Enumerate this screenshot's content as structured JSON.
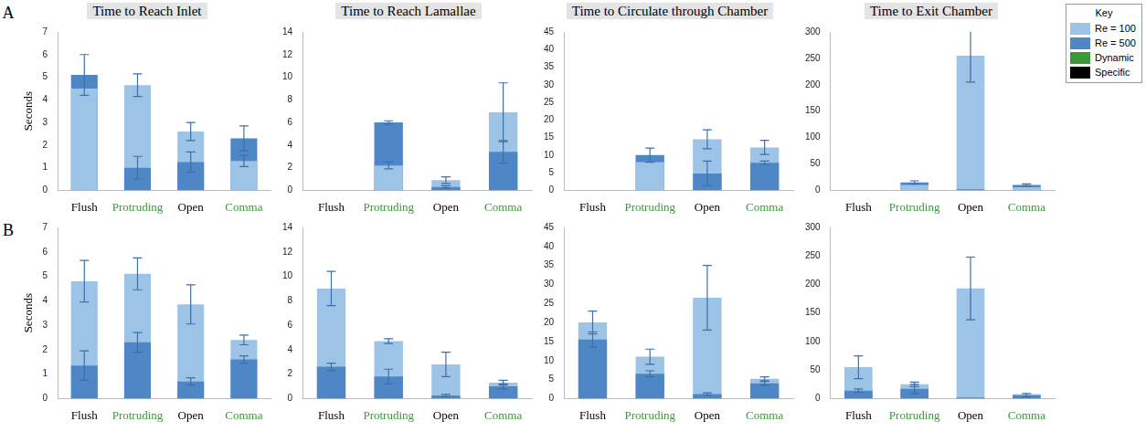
{
  "chart_data": [
    {
      "type": "bar",
      "panel": "A",
      "title": "Time to Reach Inlet",
      "y_label": "Seconds",
      "categories": [
        "Flush",
        "Protruding",
        "Open",
        "Comma"
      ],
      "category_groups": [
        "Specific",
        "Dynamic",
        "Specific",
        "Dynamic"
      ],
      "series": [
        {
          "name": "Re = 100",
          "color": "#9dc3e6",
          "values": [
            4.5,
            4.65,
            2.6,
            1.3
          ],
          "errors": [
            null,
            0.5,
            0.4,
            0.25
          ]
        },
        {
          "name": "Re = 500",
          "color": "#4f86c6",
          "values": [
            5.1,
            1.0,
            1.25,
            2.3
          ],
          "errors": [
            0.9,
            0.5,
            0.45,
            0.55
          ]
        }
      ],
      "ylim": [
        0,
        7
      ],
      "yticks": [
        0,
        1,
        2,
        3,
        4,
        5,
        6,
        7
      ],
      "grid": false
    },
    {
      "type": "bar",
      "title": "Time to Reach Lamallae",
      "categories": [
        "Flush",
        "Protruding",
        "Open",
        "Comma"
      ],
      "category_groups": [
        "Specific",
        "Dynamic",
        "Specific",
        "Dynamic"
      ],
      "series": [
        {
          "name": "Re = 100",
          "color": "#9dc3e6",
          "values": [
            null,
            2.2,
            0.9,
            6.9
          ],
          "errors": [
            null,
            0.3,
            0.3,
            2.6
          ]
        },
        {
          "name": "Re = 500",
          "color": "#4f86c6",
          "values": [
            null,
            6.0,
            0.3,
            3.4
          ],
          "errors": [
            null,
            0.15,
            0.1,
            1.0
          ]
        }
      ],
      "ylim": [
        0,
        14
      ],
      "yticks": [
        0,
        2,
        4,
        6,
        8,
        10,
        12,
        14
      ],
      "grid": false
    },
    {
      "type": "bar",
      "title": "Time to Circulate through Chamber",
      "categories": [
        "Flush",
        "Protruding",
        "Open",
        "Comma"
      ],
      "category_groups": [
        "Specific",
        "Dynamic",
        "Specific",
        "Dynamic"
      ],
      "series": [
        {
          "name": "Re = 100",
          "color": "#9dc3e6",
          "values": [
            null,
            8.0,
            14.5,
            12.2
          ],
          "errors": [
            null,
            null,
            2.7,
            2.0
          ]
        },
        {
          "name": "Re = 500",
          "color": "#4f86c6",
          "values": [
            null,
            10.0,
            4.8,
            7.8
          ],
          "errors": [
            null,
            2.0,
            3.5,
            0.5
          ]
        }
      ],
      "ylim": [
        0,
        45
      ],
      "yticks": [
        0,
        5,
        10,
        15,
        20,
        25,
        30,
        35,
        40,
        45
      ],
      "grid": false
    },
    {
      "type": "bar",
      "title": "Time to Exit Chamber",
      "categories": [
        "Flush",
        "Protruding",
        "Open",
        "Comma"
      ],
      "category_groups": [
        "Specific",
        "Dynamic",
        "Specific",
        "Dynamic"
      ],
      "series": [
        {
          "name": "Re = 100",
          "color": "#9dc3e6",
          "values": [
            null,
            10,
            255,
            6
          ],
          "errors": [
            null,
            null,
            50,
            null
          ]
        },
        {
          "name": "Re = 500",
          "color": "#4f86c6",
          "values": [
            null,
            15,
            2,
            10
          ],
          "errors": [
            null,
            3,
            null,
            2
          ]
        }
      ],
      "ylim": [
        0,
        300
      ],
      "yticks": [
        0,
        50,
        100,
        150,
        200,
        250,
        300
      ],
      "grid": false
    },
    {
      "type": "bar",
      "panel": "B",
      "y_label": "Seconds",
      "categories": [
        "Flush",
        "Protruding",
        "Open",
        "Comma"
      ],
      "category_groups": [
        "Specific",
        "Dynamic",
        "Specific",
        "Dynamic"
      ],
      "series": [
        {
          "name": "Re = 100",
          "color": "#9dc3e6",
          "values": [
            4.8,
            5.1,
            3.85,
            2.4
          ],
          "errors": [
            0.85,
            0.65,
            0.8,
            0.2
          ]
        },
        {
          "name": "Re = 500",
          "color": "#4f86c6",
          "values": [
            1.35,
            2.3,
            0.7,
            1.6
          ],
          "errors": [
            0.6,
            0.4,
            0.15,
            0.15
          ]
        }
      ],
      "ylim": [
        0,
        7
      ],
      "yticks": [
        0,
        1,
        2,
        3,
        4,
        5,
        6,
        7
      ],
      "grid": false
    },
    {
      "type": "bar",
      "categories": [
        "Flush",
        "Protruding",
        "Open",
        "Comma"
      ],
      "category_groups": [
        "Specific",
        "Dynamic",
        "Specific",
        "Dynamic"
      ],
      "series": [
        {
          "name": "Re = 100",
          "color": "#9dc3e6",
          "values": [
            9.0,
            4.7,
            2.8,
            1.3
          ],
          "errors": [
            1.4,
            0.2,
            1.0,
            0.2
          ]
        },
        {
          "name": "Re = 500",
          "color": "#4f86c6",
          "values": [
            2.6,
            1.8,
            0.25,
            1.0
          ],
          "errors": [
            0.3,
            0.6,
            0.1,
            0.2
          ]
        }
      ],
      "ylim": [
        0,
        14
      ],
      "yticks": [
        0,
        2,
        4,
        6,
        8,
        10,
        12,
        14
      ],
      "grid": false
    },
    {
      "type": "bar",
      "categories": [
        "Flush",
        "Protruding",
        "Open",
        "Comma"
      ],
      "category_groups": [
        "Specific",
        "Dynamic",
        "Specific",
        "Dynamic"
      ],
      "series": [
        {
          "name": "Re = 100",
          "color": "#9dc3e6",
          "values": [
            20,
            11,
            26.5,
            5.2
          ],
          "errors": [
            3,
            2,
            8.5,
            0.5
          ]
        },
        {
          "name": "Re = 500",
          "color": "#4f86c6",
          "values": [
            15.5,
            6.5,
            1.2,
            4.0
          ],
          "errors": [
            2,
            0.8,
            0.3,
            0.5
          ]
        }
      ],
      "ylim": [
        0,
        45
      ],
      "yticks": [
        0,
        5,
        10,
        15,
        20,
        25,
        30,
        35,
        40,
        45
      ],
      "grid": false
    },
    {
      "type": "bar",
      "categories": [
        "Flush",
        "Protruding",
        "Open",
        "Comma"
      ],
      "category_groups": [
        "Specific",
        "Dynamic",
        "Specific",
        "Dynamic"
      ],
      "series": [
        {
          "name": "Re = 100",
          "color": "#9dc3e6",
          "values": [
            55,
            25,
            193,
            8
          ],
          "errors": [
            20,
            4,
            55,
            null
          ]
        },
        {
          "name": "Re = 500",
          "color": "#4f86c6",
          "values": [
            14,
            17,
            2,
            6
          ],
          "errors": [
            3,
            8,
            null,
            3
          ]
        }
      ],
      "ylim": [
        0,
        300
      ],
      "yticks": [
        0,
        50,
        100,
        150,
        200,
        250,
        300
      ],
      "grid": false
    }
  ],
  "key": {
    "title": "Key",
    "groups": [
      {
        "name": "Dynamic",
        "color": "#3a9a3a"
      },
      {
        "name": "Specific",
        "color": "#000000"
      }
    ]
  }
}
